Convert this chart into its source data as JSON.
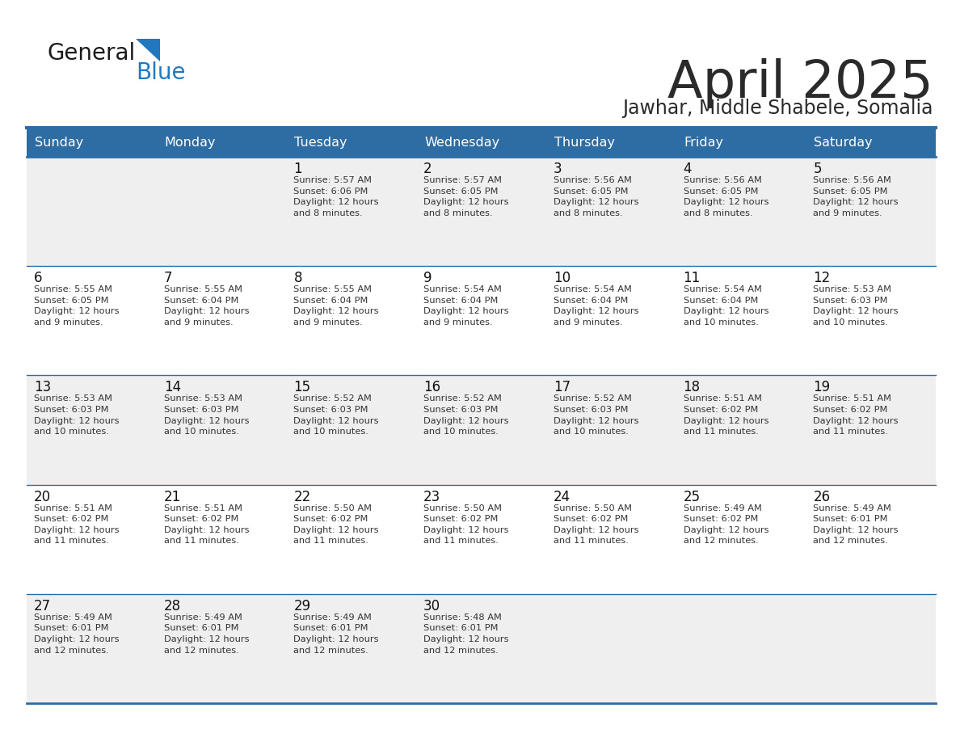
{
  "title": "April 2025",
  "subtitle": "Jawhar, Middle Shabele, Somalia",
  "header_bg": "#2E6DA4",
  "header_text_color": "#FFFFFF",
  "cell_bg_odd": "#EFEFEF",
  "cell_bg_even": "#FFFFFF",
  "border_color": "#2E6DA4",
  "days_of_week": [
    "Sunday",
    "Monday",
    "Tuesday",
    "Wednesday",
    "Thursday",
    "Friday",
    "Saturday"
  ],
  "title_color": "#2a2a2a",
  "subtitle_color": "#2a2a2a",
  "day_num_color": "#111111",
  "cell_text_color": "#333333",
  "weeks": [
    [
      {
        "day": 0,
        "text": ""
      },
      {
        "day": 0,
        "text": ""
      },
      {
        "day": 1,
        "text": "Sunrise: 5:57 AM\nSunset: 6:06 PM\nDaylight: 12 hours\nand 8 minutes."
      },
      {
        "day": 2,
        "text": "Sunrise: 5:57 AM\nSunset: 6:05 PM\nDaylight: 12 hours\nand 8 minutes."
      },
      {
        "day": 3,
        "text": "Sunrise: 5:56 AM\nSunset: 6:05 PM\nDaylight: 12 hours\nand 8 minutes."
      },
      {
        "day": 4,
        "text": "Sunrise: 5:56 AM\nSunset: 6:05 PM\nDaylight: 12 hours\nand 8 minutes."
      },
      {
        "day": 5,
        "text": "Sunrise: 5:56 AM\nSunset: 6:05 PM\nDaylight: 12 hours\nand 9 minutes."
      }
    ],
    [
      {
        "day": 6,
        "text": "Sunrise: 5:55 AM\nSunset: 6:05 PM\nDaylight: 12 hours\nand 9 minutes."
      },
      {
        "day": 7,
        "text": "Sunrise: 5:55 AM\nSunset: 6:04 PM\nDaylight: 12 hours\nand 9 minutes."
      },
      {
        "day": 8,
        "text": "Sunrise: 5:55 AM\nSunset: 6:04 PM\nDaylight: 12 hours\nand 9 minutes."
      },
      {
        "day": 9,
        "text": "Sunrise: 5:54 AM\nSunset: 6:04 PM\nDaylight: 12 hours\nand 9 minutes."
      },
      {
        "day": 10,
        "text": "Sunrise: 5:54 AM\nSunset: 6:04 PM\nDaylight: 12 hours\nand 9 minutes."
      },
      {
        "day": 11,
        "text": "Sunrise: 5:54 AM\nSunset: 6:04 PM\nDaylight: 12 hours\nand 10 minutes."
      },
      {
        "day": 12,
        "text": "Sunrise: 5:53 AM\nSunset: 6:03 PM\nDaylight: 12 hours\nand 10 minutes."
      }
    ],
    [
      {
        "day": 13,
        "text": "Sunrise: 5:53 AM\nSunset: 6:03 PM\nDaylight: 12 hours\nand 10 minutes."
      },
      {
        "day": 14,
        "text": "Sunrise: 5:53 AM\nSunset: 6:03 PM\nDaylight: 12 hours\nand 10 minutes."
      },
      {
        "day": 15,
        "text": "Sunrise: 5:52 AM\nSunset: 6:03 PM\nDaylight: 12 hours\nand 10 minutes."
      },
      {
        "day": 16,
        "text": "Sunrise: 5:52 AM\nSunset: 6:03 PM\nDaylight: 12 hours\nand 10 minutes."
      },
      {
        "day": 17,
        "text": "Sunrise: 5:52 AM\nSunset: 6:03 PM\nDaylight: 12 hours\nand 10 minutes."
      },
      {
        "day": 18,
        "text": "Sunrise: 5:51 AM\nSunset: 6:02 PM\nDaylight: 12 hours\nand 11 minutes."
      },
      {
        "day": 19,
        "text": "Sunrise: 5:51 AM\nSunset: 6:02 PM\nDaylight: 12 hours\nand 11 minutes."
      }
    ],
    [
      {
        "day": 20,
        "text": "Sunrise: 5:51 AM\nSunset: 6:02 PM\nDaylight: 12 hours\nand 11 minutes."
      },
      {
        "day": 21,
        "text": "Sunrise: 5:51 AM\nSunset: 6:02 PM\nDaylight: 12 hours\nand 11 minutes."
      },
      {
        "day": 22,
        "text": "Sunrise: 5:50 AM\nSunset: 6:02 PM\nDaylight: 12 hours\nand 11 minutes."
      },
      {
        "day": 23,
        "text": "Sunrise: 5:50 AM\nSunset: 6:02 PM\nDaylight: 12 hours\nand 11 minutes."
      },
      {
        "day": 24,
        "text": "Sunrise: 5:50 AM\nSunset: 6:02 PM\nDaylight: 12 hours\nand 11 minutes."
      },
      {
        "day": 25,
        "text": "Sunrise: 5:49 AM\nSunset: 6:02 PM\nDaylight: 12 hours\nand 12 minutes."
      },
      {
        "day": 26,
        "text": "Sunrise: 5:49 AM\nSunset: 6:01 PM\nDaylight: 12 hours\nand 12 minutes."
      }
    ],
    [
      {
        "day": 27,
        "text": "Sunrise: 5:49 AM\nSunset: 6:01 PM\nDaylight: 12 hours\nand 12 minutes."
      },
      {
        "day": 28,
        "text": "Sunrise: 5:49 AM\nSunset: 6:01 PM\nDaylight: 12 hours\nand 12 minutes."
      },
      {
        "day": 29,
        "text": "Sunrise: 5:49 AM\nSunset: 6:01 PM\nDaylight: 12 hours\nand 12 minutes."
      },
      {
        "day": 30,
        "text": "Sunrise: 5:48 AM\nSunset: 6:01 PM\nDaylight: 12 hours\nand 12 minutes."
      },
      {
        "day": 0,
        "text": ""
      },
      {
        "day": 0,
        "text": ""
      },
      {
        "day": 0,
        "text": ""
      }
    ]
  ],
  "logo_color_general": "#1a1a1a",
  "logo_color_blue": "#2178BE"
}
